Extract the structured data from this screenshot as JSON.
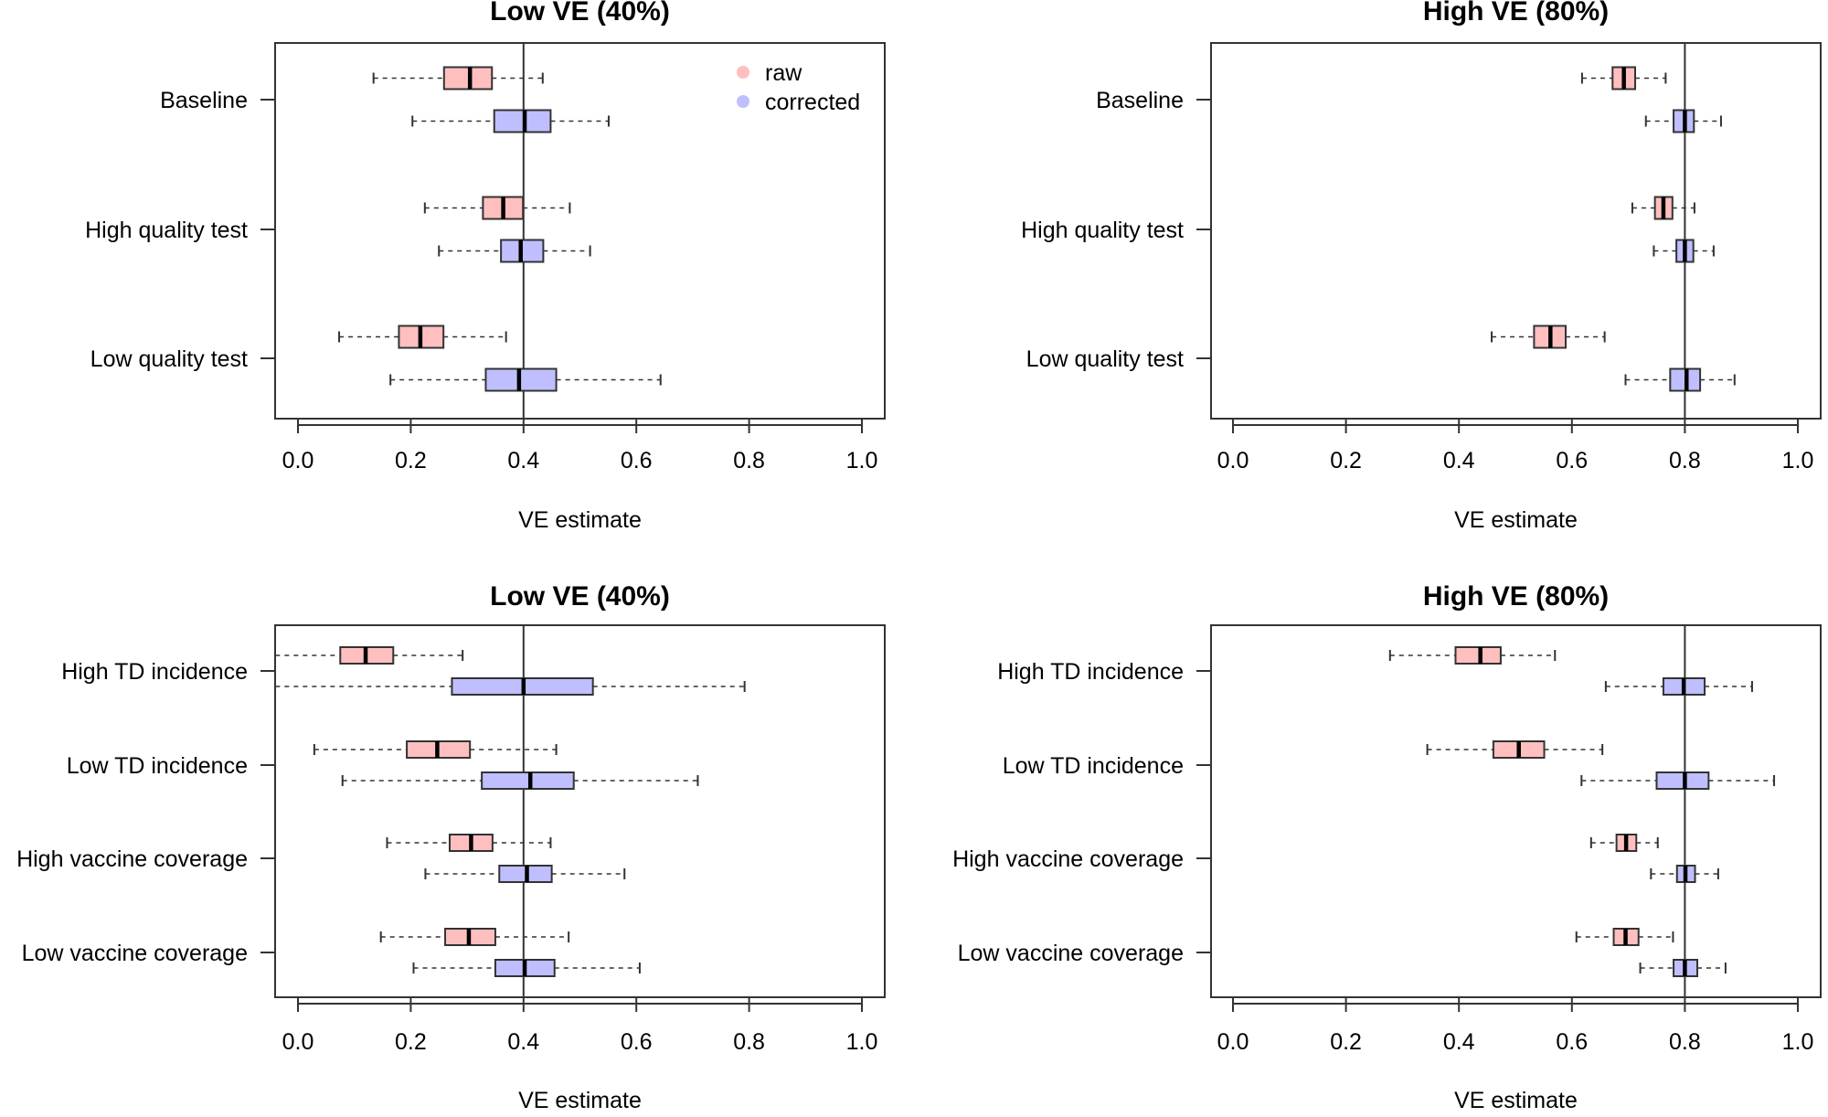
{
  "chart_data": [
    {
      "type": "boxplot",
      "orientation": "horizontal",
      "title": "Low VE (40%)",
      "xlabel": "VE estimate",
      "ylabel": "",
      "xlim": [
        0,
        1
      ],
      "xticks": [
        "0.0",
        "0.2",
        "0.4",
        "0.6",
        "0.8",
        "1.0"
      ],
      "reference_line": 0.4,
      "legend": {
        "placement": "top-right",
        "entries": [
          {
            "label": "raw",
            "color": "#FFBFBF"
          },
          {
            "label": "corrected",
            "color": "#BFBFFF"
          }
        ]
      },
      "categories": [
        "Baseline",
        "High quality test",
        "Low quality test"
      ],
      "series": [
        {
          "name": "raw",
          "color": "#FFBFBF",
          "values": [
            {
              "whisker_low": 0.134,
              "q1": 0.259,
              "median": 0.305,
              "q3": 0.344,
              "whisker_high": 0.434
            },
            {
              "whisker_low": 0.225,
              "q1": 0.328,
              "median": 0.364,
              "q3": 0.399,
              "whisker_high": 0.482
            },
            {
              "whisker_low": 0.073,
              "q1": 0.179,
              "median": 0.217,
              "q3": 0.258,
              "whisker_high": 0.369
            }
          ]
        },
        {
          "name": "corrected",
          "color": "#BFBFFF",
          "values": [
            {
              "whisker_low": 0.203,
              "q1": 0.348,
              "median": 0.402,
              "q3": 0.448,
              "whisker_high": 0.551
            },
            {
              "whisker_low": 0.25,
              "q1": 0.36,
              "median": 0.395,
              "q3": 0.435,
              "whisker_high": 0.518
            },
            {
              "whisker_low": 0.164,
              "q1": 0.333,
              "median": 0.392,
              "q3": 0.458,
              "whisker_high": 0.643
            }
          ]
        }
      ]
    },
    {
      "type": "boxplot",
      "orientation": "horizontal",
      "title": "High VE (80%)",
      "xlabel": "VE estimate",
      "ylabel": "",
      "xlim": [
        0,
        1
      ],
      "xticks": [
        "0.0",
        "0.2",
        "0.4",
        "0.6",
        "0.8",
        "1.0"
      ],
      "reference_line": 0.8,
      "categories": [
        "Baseline",
        "High quality test",
        "Low quality test"
      ],
      "series": [
        {
          "name": "raw",
          "color": "#FFBFBF",
          "values": [
            {
              "whisker_low": 0.618,
              "q1": 0.672,
              "median": 0.692,
              "q3": 0.712,
              "whisker_high": 0.766
            },
            {
              "whisker_low": 0.707,
              "q1": 0.747,
              "median": 0.762,
              "q3": 0.778,
              "whisker_high": 0.817
            },
            {
              "whisker_low": 0.458,
              "q1": 0.533,
              "median": 0.562,
              "q3": 0.589,
              "whisker_high": 0.658
            }
          ]
        },
        {
          "name": "corrected",
          "color": "#BFBFFF",
          "values": [
            {
              "whisker_low": 0.731,
              "q1": 0.78,
              "median": 0.8,
              "q3": 0.816,
              "whisker_high": 0.864
            },
            {
              "whisker_low": 0.745,
              "q1": 0.785,
              "median": 0.8,
              "q3": 0.815,
              "whisker_high": 0.851
            },
            {
              "whisker_low": 0.695,
              "q1": 0.774,
              "median": 0.803,
              "q3": 0.827,
              "whisker_high": 0.888
            }
          ]
        }
      ]
    },
    {
      "type": "boxplot",
      "orientation": "horizontal",
      "title": "Low VE (40%)",
      "xlabel": "VE estimate",
      "ylabel": "",
      "xlim": [
        0,
        1
      ],
      "xticks": [
        "0.0",
        "0.2",
        "0.4",
        "0.6",
        "0.8",
        "1.0"
      ],
      "reference_line": 0.4,
      "categories": [
        "High TD incidence",
        "Low TD incidence",
        "High vaccine coverage",
        "Low vaccine coverage"
      ],
      "series": [
        {
          "name": "raw",
          "color": "#FFBFBF",
          "values": [
            {
              "whisker_low": -0.04,
              "q1": 0.075,
              "median": 0.12,
              "q3": 0.169,
              "whisker_high": 0.292
            },
            {
              "whisker_low": 0.029,
              "q1": 0.193,
              "median": 0.247,
              "q3": 0.305,
              "whisker_high": 0.458
            },
            {
              "whisker_low": 0.158,
              "q1": 0.269,
              "median": 0.307,
              "q3": 0.345,
              "whisker_high": 0.448
            },
            {
              "whisker_low": 0.147,
              "q1": 0.261,
              "median": 0.303,
              "q3": 0.35,
              "whisker_high": 0.48
            }
          ]
        },
        {
          "name": "corrected",
          "color": "#BFBFFF",
          "values": [
            {
              "whisker_low": -0.04,
              "q1": 0.273,
              "median": 0.4,
              "q3": 0.523,
              "whisker_high": 0.792
            },
            {
              "whisker_low": 0.079,
              "q1": 0.326,
              "median": 0.412,
              "q3": 0.489,
              "whisker_high": 0.709
            },
            {
              "whisker_low": 0.226,
              "q1": 0.357,
              "median": 0.406,
              "q3": 0.45,
              "whisker_high": 0.579
            },
            {
              "whisker_low": 0.205,
              "q1": 0.35,
              "median": 0.402,
              "q3": 0.455,
              "whisker_high": 0.606
            }
          ]
        }
      ]
    },
    {
      "type": "boxplot",
      "orientation": "horizontal",
      "title": "High VE (80%)",
      "xlabel": "VE estimate",
      "ylabel": "",
      "xlim": [
        0,
        1
      ],
      "xticks": [
        "0.0",
        "0.2",
        "0.4",
        "0.6",
        "0.8",
        "1.0"
      ],
      "reference_line": 0.8,
      "categories": [
        "High TD incidence",
        "Low TD incidence",
        "High vaccine coverage",
        "Low vaccine coverage"
      ],
      "series": [
        {
          "name": "raw",
          "color": "#FFBFBF",
          "values": [
            {
              "whisker_low": 0.278,
              "q1": 0.394,
              "median": 0.438,
              "q3": 0.474,
              "whisker_high": 0.57
            },
            {
              "whisker_low": 0.344,
              "q1": 0.461,
              "median": 0.506,
              "q3": 0.551,
              "whisker_high": 0.654
            },
            {
              "whisker_low": 0.634,
              "q1": 0.679,
              "median": 0.696,
              "q3": 0.714,
              "whisker_high": 0.752
            },
            {
              "whisker_low": 0.608,
              "q1": 0.674,
              "median": 0.695,
              "q3": 0.718,
              "whisker_high": 0.779
            }
          ]
        },
        {
          "name": "corrected",
          "color": "#BFBFFF",
          "values": [
            {
              "whisker_low": 0.66,
              "q1": 0.762,
              "median": 0.798,
              "q3": 0.835,
              "whisker_high": 0.919
            },
            {
              "whisker_low": 0.617,
              "q1": 0.75,
              "median": 0.8,
              "q3": 0.842,
              "whisker_high": 0.958
            },
            {
              "whisker_low": 0.74,
              "q1": 0.786,
              "median": 0.801,
              "q3": 0.818,
              "whisker_high": 0.859
            },
            {
              "whisker_low": 0.721,
              "q1": 0.78,
              "median": 0.8,
              "q3": 0.822,
              "whisker_high": 0.872
            }
          ]
        }
      ]
    }
  ]
}
